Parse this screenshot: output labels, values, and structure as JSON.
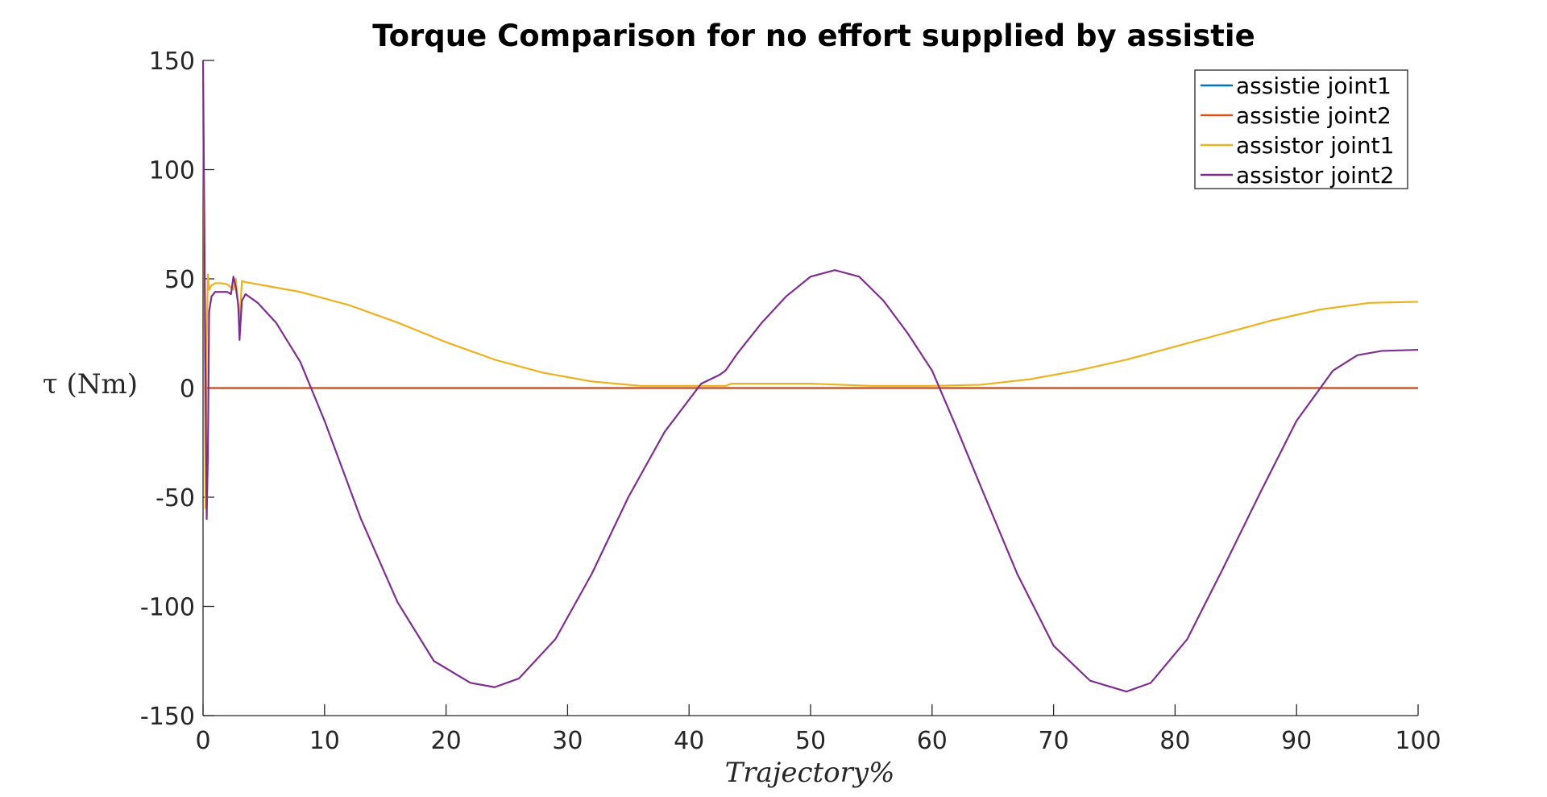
{
  "chart_data": {
    "type": "line",
    "title": "Torque Comparison for no effort supplied by assistie",
    "xlabel": "Trajectory%",
    "ylabel": "τ (Nm)",
    "xlim": [
      0,
      100
    ],
    "ylim": [
      -150,
      150
    ],
    "xticks": [
      0,
      10,
      20,
      30,
      40,
      50,
      60,
      70,
      80,
      90,
      100
    ],
    "yticks": [
      -150,
      -100,
      -50,
      0,
      50,
      100,
      150
    ],
    "xtick_labels": [
      "0",
      "10",
      "20",
      "30",
      "40",
      "50",
      "60",
      "70",
      "80",
      "90",
      "100"
    ],
    "ytick_labels": [
      "-150",
      "-100",
      "-50",
      "0",
      "50",
      "100",
      "150"
    ],
    "grid": false,
    "legend_position": "top-right",
    "series": [
      {
        "name": "assistie joint1",
        "color": "#0072BD",
        "x": [
          0,
          100
        ],
        "y": [
          0,
          0
        ]
      },
      {
        "name": "assistie joint2",
        "color": "#D95319",
        "x": [
          0,
          100
        ],
        "y": [
          0,
          0
        ]
      },
      {
        "name": "assistor joint1",
        "color": "#EDB120",
        "x": [
          0,
          0.1,
          0.2,
          0.3,
          0.4,
          0.5,
          0.7,
          1,
          1.5,
          2,
          2.5,
          2.7,
          3,
          3.2,
          3.5,
          5,
          8,
          12,
          16,
          20,
          24,
          28,
          32,
          36,
          40,
          43,
          43.5,
          46,
          50,
          55,
          60,
          64,
          68,
          72,
          76,
          80,
          84,
          88,
          92,
          96,
          100
        ],
        "y": [
          140,
          60,
          -55,
          20,
          52,
          45,
          47,
          48,
          48,
          47.5,
          45,
          50,
          30,
          49,
          48.5,
          47,
          44,
          38,
          30,
          21,
          13,
          7,
          3,
          1,
          1,
          1,
          2,
          2,
          2,
          1,
          1,
          1.5,
          4,
          8,
          13,
          19,
          25,
          31,
          36,
          39,
          39.5
        ]
      },
      {
        "name": "assistor joint2",
        "color": "#7E2F8E",
        "x": [
          0,
          0.1,
          0.2,
          0.3,
          0.4,
          0.5,
          0.7,
          1,
          1.5,
          2,
          2.3,
          2.5,
          2.7,
          2.9,
          3,
          3.2,
          3.5,
          4.5,
          6,
          8,
          10,
          13,
          16,
          19,
          22,
          24,
          26,
          29,
          32,
          35,
          38,
          41,
          42.5,
          43,
          44,
          46,
          48,
          50,
          52,
          54,
          56,
          58,
          60,
          61,
          62,
          64,
          67,
          70,
          73,
          76,
          78,
          81,
          84,
          87,
          90,
          93,
          95,
          97,
          100
        ],
        "y": [
          150,
          80,
          10,
          -60,
          -30,
          35,
          42,
          44,
          44,
          44,
          43,
          51,
          46,
          38,
          22,
          40,
          43,
          39,
          30,
          12,
          -15,
          -60,
          -98,
          -125,
          -135,
          -137,
          -133,
          -115,
          -85,
          -50,
          -20,
          2,
          6,
          8,
          16,
          30,
          42,
          51,
          54,
          51,
          40,
          25,
          8,
          -5,
          -18,
          -45,
          -85,
          -118,
          -134,
          -139,
          -135,
          -115,
          -82,
          -48,
          -15,
          8,
          15,
          17,
          17.5
        ]
      }
    ]
  }
}
